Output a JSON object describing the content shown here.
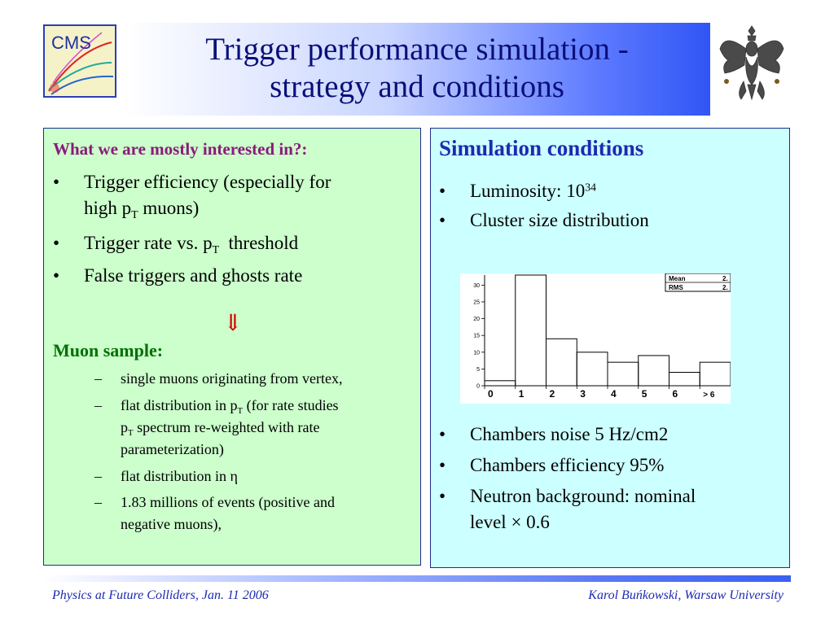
{
  "header": {
    "title_line1": "Trigger performance simulation -",
    "title_line2": "strategy and conditions",
    "logo_text": "CMS"
  },
  "left": {
    "heading": "What we are mostly interested in?:",
    "bullets": [
      {
        "line1_pre": "Trigger efficiency (especially for",
        "line2_pre": "high p",
        "line2_sub": "T",
        "line2_post": " muons)"
      },
      {
        "pre": "Trigger rate vs. p",
        "sub": "T",
        "post": "  threshold"
      },
      {
        "text": "False triggers and ghosts rate"
      }
    ],
    "arrow": "⇓",
    "sample_heading": "Muon sample:",
    "sub_bullets": [
      {
        "text": "single muons originating from vertex,"
      },
      {
        "l1_pre": "flat distribution in p",
        "l1_sub": "T",
        "l1_post": " (for rate studies",
        "l2_pre": "p",
        "l2_sub": "T",
        "l2_post": " spectrum re-weighted with rate",
        "l3": "parameterization)"
      },
      {
        "text": "flat distribution in η"
      },
      {
        "l1": "1.83 millions of events (positive and",
        "l2": "negative muons),"
      }
    ]
  },
  "right": {
    "heading": "Simulation conditions",
    "bullets_top": [
      {
        "pre": "Luminosity: 10",
        "sup": "34"
      },
      {
        "text": "Cluster size distribution"
      }
    ],
    "bullets_bottom": [
      {
        "text": "Chambers noise 5 Hz/cm2"
      },
      {
        "text": "Chambers efficiency 95%"
      },
      {
        "l1": "Neutron background: nominal",
        "l2": "level × 0.6"
      }
    ]
  },
  "chart_data": {
    "type": "bar",
    "categories": [
      "0",
      "1",
      "2",
      "3",
      "4",
      "5",
      "6",
      "> 6"
    ],
    "values": [
      1.5,
      33,
      14,
      10,
      7,
      9,
      4,
      7
    ],
    "ylim": [
      0,
      33
    ],
    "y_ticks": [
      "0",
      "5",
      "10",
      "15",
      "20",
      "25",
      "30"
    ],
    "stats_labels": [
      "Mean",
      "RMS"
    ],
    "stats_values": [
      "2.",
      "2."
    ],
    "grid": false
  },
  "footer": {
    "left": "Physics at Future Colliders, Jan. 11 2006",
    "right": "Karol Buńkowski, Warsaw University"
  },
  "colors": {
    "title": "#0a0f7a",
    "panel_left_bg": "#ccffcc",
    "panel_right_bg": "#ccffff",
    "heading_maroon": "#8b1a7a",
    "heading_green": "#007000",
    "heading_blue": "#1d2ab0",
    "arrow": "#d40000",
    "footer_text": "#1d2ab0"
  }
}
